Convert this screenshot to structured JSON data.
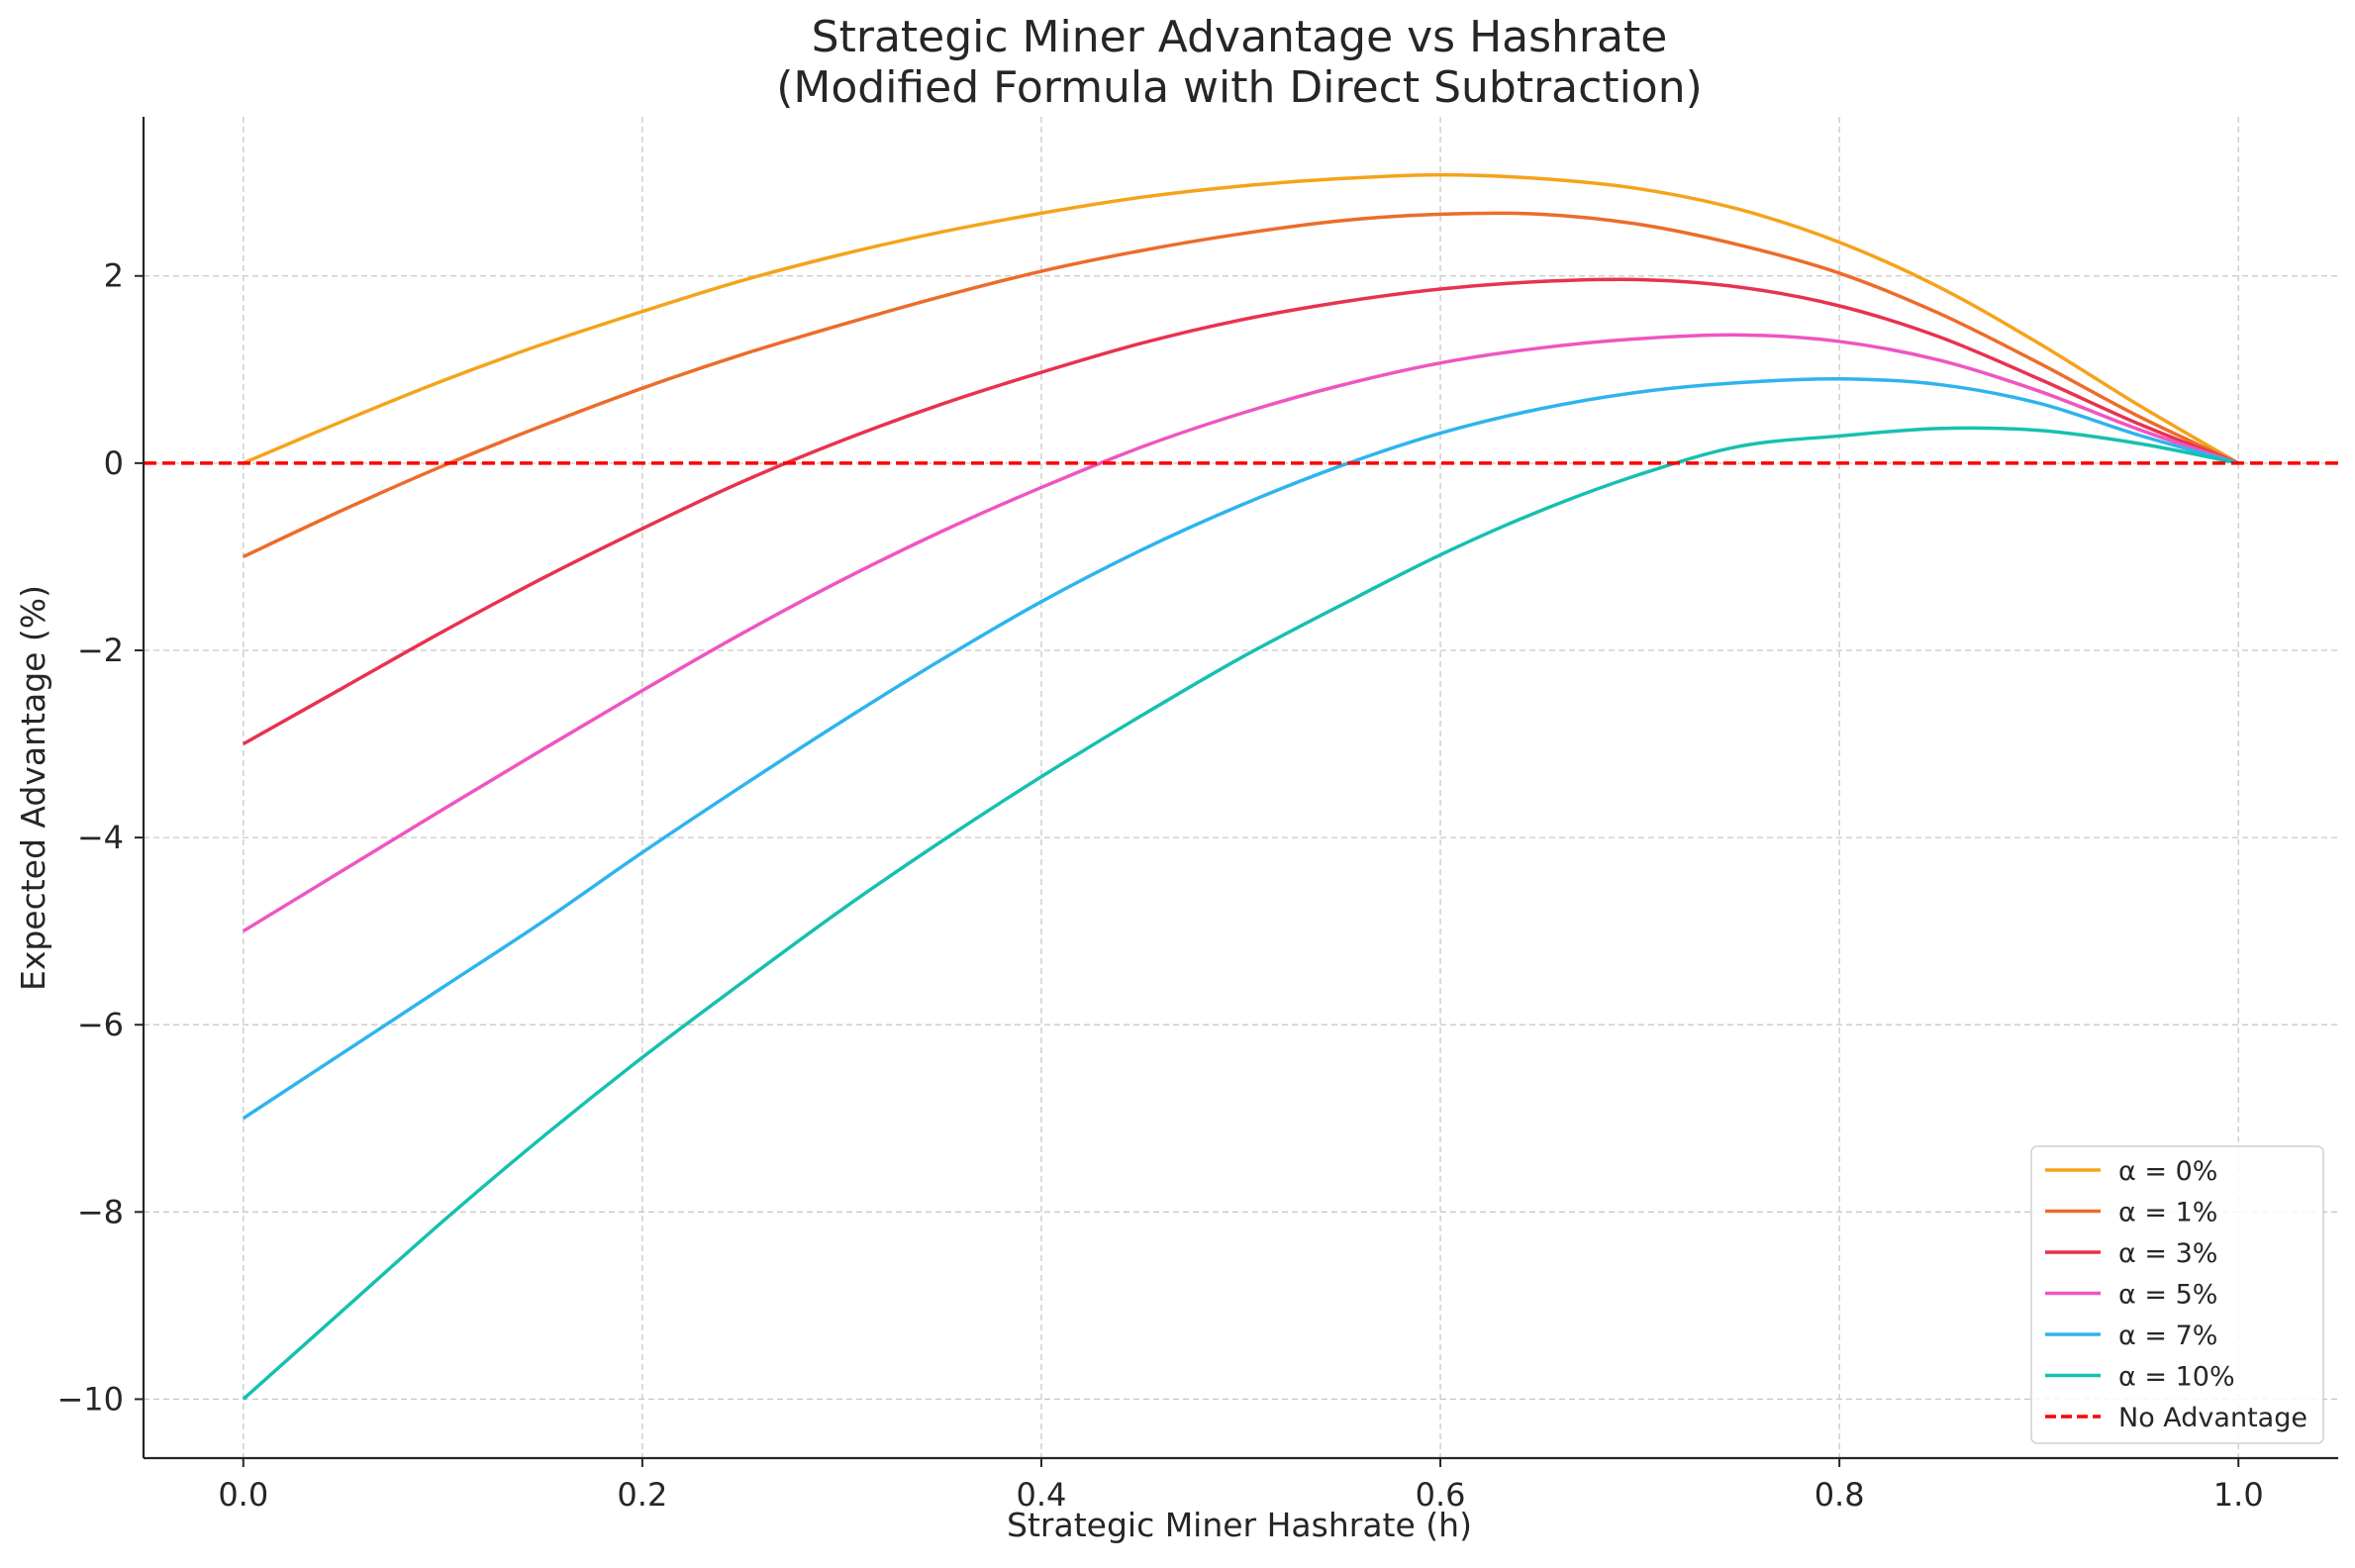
{
  "chart_data": {
    "type": "line",
    "title": [
      "Strategic Miner Advantage vs Hashrate",
      "(Modified Formula with Direct Subtraction)"
    ],
    "xlabel": "Strategic Miner Hashrate (h)",
    "ylabel": "Expected Advantage (%)",
    "xlim": [
      -0.05,
      1.05
    ],
    "ylim": [
      -10.63,
      3.7
    ],
    "xticks": [
      0.0,
      0.2,
      0.4,
      0.6,
      0.8,
      1.0
    ],
    "xtick_labels": [
      "0.0",
      "0.2",
      "0.4",
      "0.6",
      "0.8",
      "1.0"
    ],
    "yticks": [
      -10,
      -8,
      -6,
      -4,
      -2,
      0,
      2
    ],
    "ytick_labels": [
      "−10",
      "−8",
      "−6",
      "−4",
      "−2",
      "0",
      "2"
    ],
    "grid": true,
    "legend_position": "bottom-right",
    "x": [
      0.0,
      0.05,
      0.1,
      0.15,
      0.2,
      0.25,
      0.3,
      0.35,
      0.4,
      0.45,
      0.5,
      0.55,
      0.6,
      0.65,
      0.7,
      0.75,
      0.8,
      0.85,
      0.9,
      0.95,
      1.0
    ],
    "series": [
      {
        "name": "α = 0%",
        "color": "#f5a31a",
        "values": [
          0.0,
          0.45,
          0.88,
          1.27,
          1.62,
          1.95,
          2.23,
          2.47,
          2.67,
          2.84,
          2.96,
          3.04,
          3.08,
          3.04,
          2.93,
          2.71,
          2.36,
          1.88,
          1.28,
          0.62,
          0.0
        ]
      },
      {
        "name": "α = 1%",
        "color": "#ec6c2a",
        "values": [
          -1.0,
          -0.5,
          -0.03,
          0.4,
          0.8,
          1.16,
          1.48,
          1.78,
          2.05,
          2.27,
          2.45,
          2.59,
          2.66,
          2.66,
          2.55,
          2.33,
          2.03,
          1.6,
          1.07,
          0.5,
          0.0
        ]
      },
      {
        "name": "α = 3%",
        "color": "#e8324f",
        "values": [
          -3.0,
          -2.4,
          -1.8,
          -1.23,
          -0.7,
          -0.2,
          0.24,
          0.63,
          0.97,
          1.28,
          1.53,
          1.72,
          1.86,
          1.94,
          1.96,
          1.88,
          1.68,
          1.35,
          0.9,
          0.42,
          0.0
        ]
      },
      {
        "name": "α = 5%",
        "color": "#ef55c1",
        "values": [
          -5.0,
          -4.35,
          -3.7,
          -3.06,
          -2.43,
          -1.82,
          -1.25,
          -0.73,
          -0.26,
          0.17,
          0.53,
          0.83,
          1.07,
          1.23,
          1.33,
          1.37,
          1.3,
          1.1,
          0.77,
          0.36,
          0.0
        ]
      },
      {
        "name": "α = 7%",
        "color": "#2eb4ee",
        "values": [
          -7.0,
          -6.3,
          -5.6,
          -4.9,
          -4.16,
          -3.45,
          -2.76,
          -2.1,
          -1.48,
          -0.93,
          -0.45,
          -0.03,
          0.32,
          0.58,
          0.76,
          0.86,
          0.9,
          0.84,
          0.64,
          0.3,
          0.0
        ]
      },
      {
        "name": "α = 10%",
        "color": "#16c0b0",
        "values": [
          -10.0,
          -9.05,
          -8.1,
          -7.2,
          -6.35,
          -5.55,
          -4.77,
          -4.04,
          -3.35,
          -2.7,
          -2.08,
          -1.52,
          -0.98,
          -0.51,
          -0.12,
          0.18,
          0.29,
          0.37,
          0.35,
          0.21,
          0.0
        ]
      },
      {
        "name": "No Advantage",
        "color": "#ff0000",
        "style": "dashed",
        "values": [
          0,
          0,
          0,
          0,
          0,
          0,
          0,
          0,
          0,
          0,
          0,
          0,
          0,
          0,
          0,
          0,
          0,
          0,
          0,
          0,
          0
        ]
      }
    ]
  }
}
